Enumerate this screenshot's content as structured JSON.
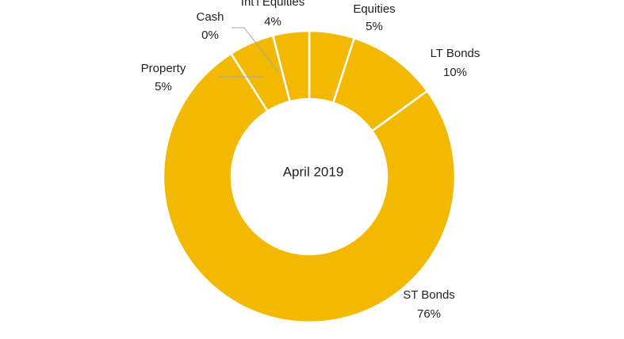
{
  "chart_data": {
    "type": "donut",
    "center_label": "April 2019",
    "categories": [
      "Equities",
      "LT Bonds",
      "ST Bonds",
      "Property",
      "Cash",
      "Int'l Equities"
    ],
    "values": [
      5,
      10,
      76,
      5,
      0,
      4
    ],
    "value_labels": [
      "5%",
      "10%",
      "76%",
      "5%",
      "0%",
      "4%"
    ],
    "color": "#f2b900"
  }
}
